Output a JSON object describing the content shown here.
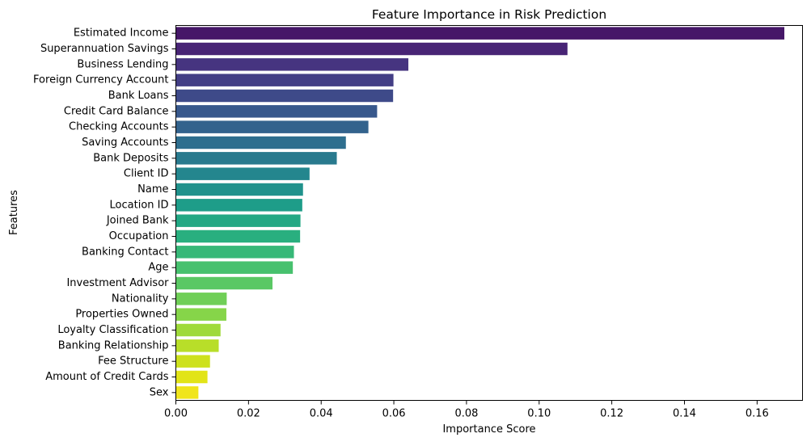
{
  "chart_data": {
    "type": "bar",
    "orientation": "horizontal",
    "title": "Feature Importance in Risk Prediction",
    "xlabel": "Importance Score",
    "ylabel": "Features",
    "xlim": [
      0,
      0.1725
    ],
    "xticks": [
      0.0,
      0.02,
      0.04,
      0.06,
      0.08,
      0.1,
      0.12,
      0.14,
      0.16
    ],
    "xtick_labels": [
      "0.00",
      "0.02",
      "0.04",
      "0.06",
      "0.08",
      "0.10",
      "0.12",
      "0.14",
      "0.16"
    ],
    "grid": false,
    "legend": "none",
    "palette": "viridis",
    "categories": [
      "Estimated Income",
      "Superannuation Savings",
      "Business Lending",
      "Foreign Currency Account",
      "Bank Loans",
      "Credit Card Balance",
      "Checking Accounts",
      "Saving Accounts",
      "Bank Deposits",
      "Client ID",
      "Name",
      "Location ID",
      "Joined Bank",
      "Occupation",
      "Banking Contact",
      "Age",
      "Investment Advisor",
      "Nationality",
      "Properties Owned",
      "Loyalty Classification",
      "Banking Relationship",
      "Fee Structure",
      "Amount of Credit Cards",
      "Sex"
    ],
    "values": [
      0.1675,
      0.1078,
      0.064,
      0.0599,
      0.0598,
      0.0554,
      0.053,
      0.0468,
      0.0443,
      0.0368,
      0.035,
      0.0348,
      0.0343,
      0.0342,
      0.0325,
      0.0322,
      0.0266,
      0.014,
      0.0139,
      0.0123,
      0.0118,
      0.0094,
      0.0087,
      0.0062
    ],
    "colors": [
      "#461768",
      "#482475",
      "#463480",
      "#433e85",
      "#3e4a89",
      "#38588c",
      "#33638d",
      "#2e6e8e",
      "#297a8e",
      "#24868e",
      "#20928c",
      "#1e9d89",
      "#22a884",
      "#29af7f",
      "#37b878",
      "#47c16e",
      "#5ac864",
      "#70cf57",
      "#86d549",
      "#9fda3a",
      "#b8de29",
      "#cde11d",
      "#e2e418",
      "#f0e51c"
    ]
  }
}
